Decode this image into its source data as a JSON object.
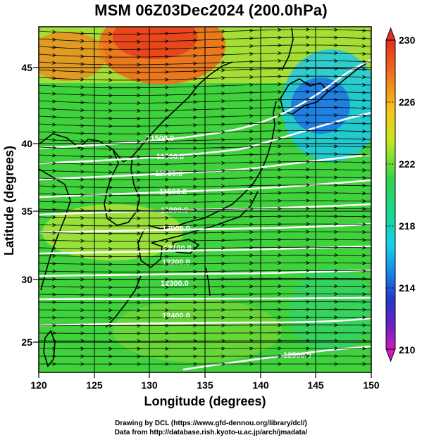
{
  "title": "MSM 06Z03Dec2024 (200.0hPa)",
  "x_axis": {
    "label": "Longitude (degrees)",
    "ticks": [
      "120",
      "125",
      "130",
      "135",
      "140",
      "145",
      "150"
    ],
    "range": [
      120,
      150
    ]
  },
  "y_axis": {
    "label": "Latitude  (degrees)",
    "ticks": [
      "25",
      "30",
      "35",
      "40",
      "45"
    ],
    "range": [
      22.5,
      47.5
    ]
  },
  "colorbar": {
    "labels": [
      "230",
      "226",
      "222",
      "218",
      "214",
      "210"
    ],
    "range": [
      210,
      230
    ],
    "unit_hint": "temperature (K)"
  },
  "contours": {
    "color": "#ffffff",
    "labels": [
      "11500.0",
      "11600.0",
      "11700.0",
      "11800.0",
      "11900.0",
      "12000.0",
      "12100.0",
      "12200.0",
      "12300.0",
      "12400.0",
      "12500.0"
    ]
  },
  "credits": {
    "line1": "Drawing by DCL (https://www.gfd-dennou.org/library/dcl/)",
    "line2": "Data from http://database.rish.kyoto-u.ac.jp/arch/jmadata/"
  }
}
